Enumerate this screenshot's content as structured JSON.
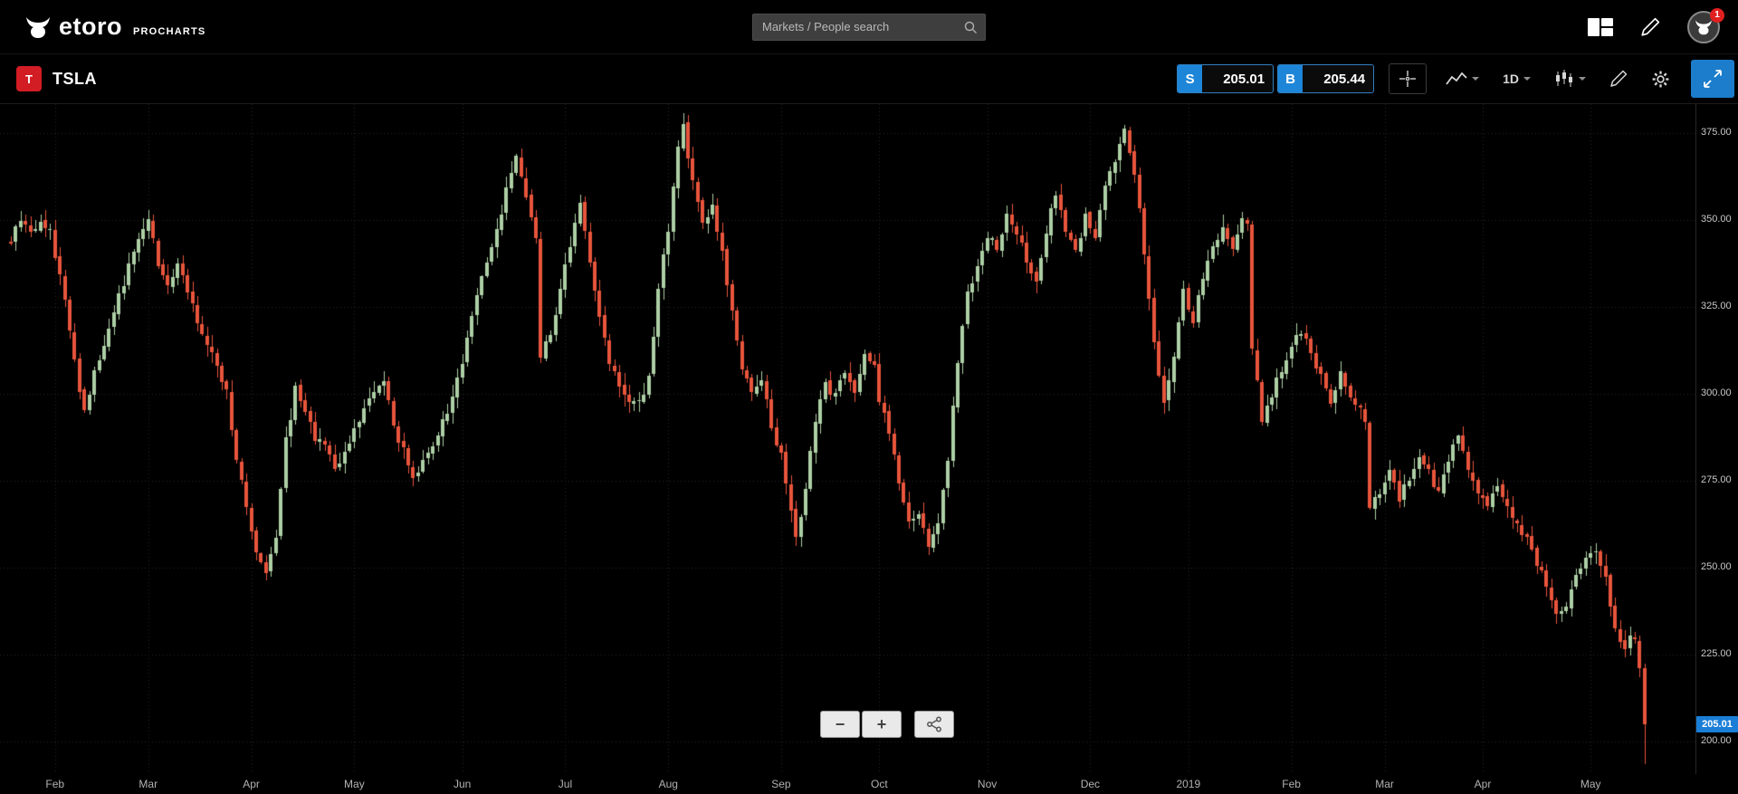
{
  "topbar": {
    "brand": "etoro",
    "brand_sub": "PROCHARTS",
    "search": {
      "placeholder": "Markets / People search",
      "value": ""
    },
    "notification_count": "1"
  },
  "toolbar": {
    "symbol": "TSLA",
    "symbol_logo_letter": "T",
    "sell_label": "S",
    "sell_price": "205.01",
    "buy_label": "B",
    "buy_price": "205.44",
    "timeframe": "1D"
  },
  "zoom_controls": {
    "zoom_out": "−",
    "zoom_in": "+"
  },
  "colors": {
    "accent_blue": "#1e86d8",
    "active_button_blue": "#1b7dcb",
    "price_tag_blue": "#1a7ed6",
    "badge_red": "#e02020",
    "tsla_logo_red": "#d21d24"
  },
  "chart_data": {
    "type": "candlestick",
    "symbol": "TSLA",
    "timeframe": "1D",
    "title": "",
    "grid": true,
    "legend": false,
    "ylim": [
      190.5,
      383.4
    ],
    "y_ticks": [
      375,
      350,
      325,
      300,
      275,
      250,
      225,
      200
    ],
    "current_price": 205.01,
    "current_price_label": "205.01",
    "up_color": "#adcfa5",
    "down_color": "#e8553c",
    "num_days": 334,
    "x_month_labels": [
      {
        "label": "Feb",
        "day": 9
      },
      {
        "label": "Mar",
        "day": 28
      },
      {
        "label": "Apr",
        "day": 49
      },
      {
        "label": "May",
        "day": 70
      },
      {
        "label": "Jun",
        "day": 92
      },
      {
        "label": "Jul",
        "day": 113
      },
      {
        "label": "Aug",
        "day": 134
      },
      {
        "label": "Sep",
        "day": 157
      },
      {
        "label": "Oct",
        "day": 177
      },
      {
        "label": "Nov",
        "day": 199
      },
      {
        "label": "Dec",
        "day": 220
      },
      {
        "label": "2019",
        "day": 240
      },
      {
        "label": "Feb",
        "day": 261
      },
      {
        "label": "Mar",
        "day": 280
      },
      {
        "label": "Apr",
        "day": 300
      },
      {
        "label": "May",
        "day": 322
      }
    ],
    "price_path": [
      [
        0,
        344
      ],
      [
        2,
        351
      ],
      [
        4,
        347
      ],
      [
        6,
        350
      ],
      [
        8,
        346
      ],
      [
        10,
        335
      ],
      [
        12,
        318
      ],
      [
        14,
        302
      ],
      [
        15,
        296
      ],
      [
        17,
        306
      ],
      [
        19,
        315
      ],
      [
        21,
        324
      ],
      [
        24,
        336
      ],
      [
        26,
        345
      ],
      [
        28,
        350
      ],
      [
        30,
        338
      ],
      [
        32,
        330
      ],
      [
        34,
        338
      ],
      [
        36,
        330
      ],
      [
        38,
        321
      ],
      [
        40,
        313
      ],
      [
        42,
        309
      ],
      [
        44,
        300
      ],
      [
        46,
        282
      ],
      [
        48,
        268
      ],
      [
        50,
        253
      ],
      [
        52,
        248
      ],
      [
        54,
        258
      ],
      [
        56,
        287
      ],
      [
        58,
        301
      ],
      [
        60,
        295
      ],
      [
        62,
        288
      ],
      [
        64,
        284
      ],
      [
        66,
        278
      ],
      [
        68,
        282
      ],
      [
        70,
        290
      ],
      [
        72,
        295
      ],
      [
        74,
        300
      ],
      [
        76,
        304
      ],
      [
        78,
        290
      ],
      [
        80,
        284
      ],
      [
        82,
        277
      ],
      [
        84,
        280
      ],
      [
        86,
        285
      ],
      [
        88,
        292
      ],
      [
        90,
        298
      ],
      [
        92,
        310
      ],
      [
        94,
        322
      ],
      [
        96,
        333
      ],
      [
        98,
        342
      ],
      [
        100,
        352
      ],
      [
        102,
        364
      ],
      [
        103,
        369
      ],
      [
        105,
        357
      ],
      [
        107,
        345
      ],
      [
        108,
        312
      ],
      [
        110,
        318
      ],
      [
        111,
        324
      ],
      [
        113,
        336
      ],
      [
        115,
        350
      ],
      [
        116,
        354
      ],
      [
        118,
        338
      ],
      [
        120,
        322
      ],
      [
        122,
        310
      ],
      [
        124,
        303
      ],
      [
        126,
        299
      ],
      [
        128,
        297
      ],
      [
        130,
        304
      ],
      [
        132,
        330
      ],
      [
        134,
        348
      ],
      [
        136,
        370
      ],
      [
        137,
        378
      ],
      [
        139,
        360
      ],
      [
        141,
        349
      ],
      [
        143,
        353
      ],
      [
        145,
        340
      ],
      [
        147,
        324
      ],
      [
        149,
        307
      ],
      [
        151,
        300
      ],
      [
        153,
        303
      ],
      [
        155,
        291
      ],
      [
        157,
        282
      ],
      [
        159,
        266
      ],
      [
        160,
        258
      ],
      [
        162,
        273
      ],
      [
        164,
        292
      ],
      [
        166,
        303
      ],
      [
        168,
        299
      ],
      [
        170,
        306
      ],
      [
        172,
        300
      ],
      [
        174,
        310
      ],
      [
        176,
        307
      ],
      [
        177,
        299
      ],
      [
        179,
        289
      ],
      [
        181,
        274
      ],
      [
        183,
        262
      ],
      [
        185,
        266
      ],
      [
        187,
        257
      ],
      [
        189,
        263
      ],
      [
        191,
        282
      ],
      [
        193,
        309
      ],
      [
        195,
        329
      ],
      [
        197,
        337
      ],
      [
        199,
        345
      ],
      [
        201,
        342
      ],
      [
        203,
        351
      ],
      [
        205,
        346
      ],
      [
        207,
        338
      ],
      [
        209,
        332
      ],
      [
        211,
        347
      ],
      [
        213,
        357
      ],
      [
        215,
        348
      ],
      [
        217,
        340
      ],
      [
        219,
        351
      ],
      [
        221,
        345
      ],
      [
        223,
        359
      ],
      [
        225,
        368
      ],
      [
        227,
        375
      ],
      [
        229,
        364
      ],
      [
        231,
        340
      ],
      [
        233,
        315
      ],
      [
        235,
        297
      ],
      [
        237,
        311
      ],
      [
        239,
        330
      ],
      [
        241,
        320
      ],
      [
        243,
        334
      ],
      [
        245,
        341
      ],
      [
        247,
        347
      ],
      [
        249,
        343
      ],
      [
        251,
        351
      ],
      [
        252,
        348
      ],
      [
        253,
        313
      ],
      [
        255,
        292
      ],
      [
        257,
        300
      ],
      [
        259,
        307
      ],
      [
        261,
        313
      ],
      [
        263,
        318
      ],
      [
        265,
        312
      ],
      [
        267,
        305
      ],
      [
        269,
        298
      ],
      [
        271,
        307
      ],
      [
        273,
        300
      ],
      [
        275,
        295
      ],
      [
        276,
        293
      ],
      [
        277,
        267
      ],
      [
        279,
        272
      ],
      [
        281,
        278
      ],
      [
        283,
        270
      ],
      [
        285,
        276
      ],
      [
        287,
        283
      ],
      [
        289,
        277
      ],
      [
        291,
        271
      ],
      [
        293,
        280
      ],
      [
        295,
        288
      ],
      [
        297,
        278
      ],
      [
        299,
        272
      ],
      [
        301,
        268
      ],
      [
        303,
        274
      ],
      [
        305,
        268
      ],
      [
        307,
        263
      ],
      [
        309,
        258
      ],
      [
        311,
        252
      ],
      [
        313,
        244
      ],
      [
        315,
        236
      ],
      [
        317,
        240
      ],
      [
        319,
        248
      ],
      [
        321,
        253
      ],
      [
        323,
        256
      ],
      [
        325,
        247
      ],
      [
        326,
        240
      ],
      [
        327,
        234
      ],
      [
        328,
        229
      ],
      [
        329,
        226
      ],
      [
        330,
        231
      ],
      [
        331,
        229
      ],
      [
        332,
        221
      ],
      [
        333,
        205
      ]
    ],
    "last_candles": [
      [
        229,
        230.5,
        218.5,
        221
      ],
      [
        221,
        222.5,
        193.5,
        205.01
      ]
    ],
    "render_noise": {
      "seed": 11,
      "close_jitter": 3,
      "open_jitter": 1.2,
      "wick": 3,
      "wick_min": 0.4
    }
  }
}
